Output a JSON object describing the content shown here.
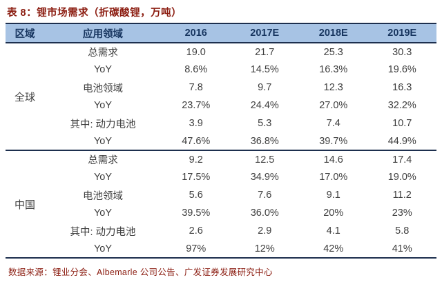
{
  "header": {
    "title": "表 8：锂市场需求（折碳酸锂，万吨）"
  },
  "chart_data": {
    "type": "table",
    "title": "锂市场需求（折碳酸锂，万吨）",
    "table_number": "表 8",
    "columns": [
      "区域",
      "应用领域",
      "2016",
      "2017E",
      "2018E",
      "2019E"
    ],
    "rows": [
      [
        "全球",
        "总需求",
        "19.0",
        "21.7",
        "25.3",
        "30.3"
      ],
      [
        "全球",
        "YoY",
        "8.6%",
        "14.5%",
        "16.3%",
        "19.6%"
      ],
      [
        "全球",
        "电池领域",
        "7.8",
        "9.7",
        "12.3",
        "16.3"
      ],
      [
        "全球",
        "YoY",
        "23.7%",
        "24.4%",
        "27.0%",
        "32.2%"
      ],
      [
        "全球",
        "其中: 动力电池",
        "3.9",
        "5.3",
        "7.4",
        "10.7"
      ],
      [
        "全球",
        "YoY",
        "47.6%",
        "36.8%",
        "39.7%",
        "44.9%"
      ],
      [
        "中国",
        "总需求",
        "9.2",
        "12.5",
        "14.6",
        "17.4"
      ],
      [
        "中国",
        "YoY",
        "17.5%",
        "34.9%",
        "17.0%",
        "19.0%"
      ],
      [
        "中国",
        "电池领域",
        "5.6",
        "7.6",
        "9.1",
        "11.2"
      ],
      [
        "中国",
        "YoY",
        "39.5%",
        "36.0%",
        "20%",
        "23%"
      ],
      [
        "中国",
        "其中: 动力电池",
        "2.6",
        "2.9",
        "4.1",
        "5.8"
      ],
      [
        "中国",
        "YoY",
        "97%",
        "12%",
        "42%",
        "41%"
      ]
    ],
    "regions": [
      "全球",
      "中国"
    ],
    "units": "万吨 (LCE)",
    "layout": "region column uses 6-row span per region; value columns center-aligned; grid off except section rules"
  },
  "footer": {
    "source": "数据来源：锂业分会、Albemarle 公司公告、广发证券发展研究中心"
  },
  "colors": {
    "title_text": "#8b1c10",
    "header_bg": "#a7c3e4",
    "header_text": "#17355f",
    "rule_border": "#1d2f4e",
    "body_text": "#3e3e3e",
    "source_text": "#8b1c10",
    "background": "#ffffff"
  }
}
